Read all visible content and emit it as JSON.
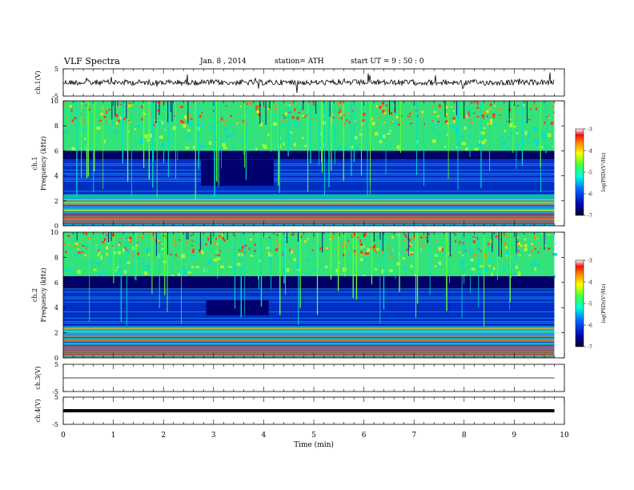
{
  "header": {
    "title": "VLF  Spectra",
    "date": "Jan.  8  , 2014",
    "station": "station= ATH",
    "start_ut": "start  UT  =   9  : 50 : 0"
  },
  "chart_data": {
    "type": "heatmap",
    "x_axis": {
      "label": "Time  (min)",
      "range": [
        0,
        10
      ],
      "ticks": [
        0,
        1,
        2,
        3,
        4,
        5,
        6,
        7,
        8,
        9,
        10
      ],
      "data_end": 9.8
    },
    "panels": [
      {
        "kind": "waveform",
        "ylabel": "ch.1(V)",
        "ylim": [
          -5,
          5
        ],
        "ytick_labels": [
          "5",
          "-5"
        ],
        "trace_color": "#000000",
        "baseline": 0
      },
      {
        "kind": "spectrogram",
        "ylabel_channel": "ch.1",
        "ylabel": "Frequency  (kHz)",
        "ylim": [
          0,
          10
        ],
        "yticks": [
          0,
          2,
          4,
          6,
          8,
          10
        ],
        "structure": {
          "green_upper_band_khz": [
            6,
            10
          ],
          "dark_band_khz": [
            5.3,
            6.0
          ],
          "blue_band_khz": [
            2.5,
            5.3
          ],
          "mixed_band_khz": [
            0,
            2.5
          ],
          "quiet_patch": {
            "t_min": [
              2.75,
              4.2
            ],
            "f_khz": [
              3.2,
              5.3
            ]
          },
          "spheric_density": 70
        },
        "colorbar": {
          "label": "log(PSD)(V²/Hz)",
          "range": [
            -7,
            -3
          ],
          "tick_labels": [
            "-3",
            "-4",
            "-5",
            "-6",
            "-7"
          ]
        }
      },
      {
        "kind": "spectrogram",
        "ylabel_channel": "ch.2",
        "ylabel": "Frequency  (kHz)",
        "ylim": [
          0,
          10
        ],
        "yticks": [
          0,
          2,
          4,
          6,
          8,
          10
        ],
        "structure": {
          "green_upper_band_khz": [
            6.5,
            10
          ],
          "dark_band_khz": [
            5.5,
            6.5
          ],
          "blue_band_khz": [
            2.5,
            5.5
          ],
          "mixed_band_khz": [
            0,
            2.5
          ],
          "quiet_patch": {
            "t_min": [
              2.85,
              4.1
            ],
            "f_khz": [
              3.4,
              4.6
            ]
          },
          "spheric_density": 50
        },
        "colorbar": {
          "label": "log(PSD)(V²/Hz)",
          "range": [
            -7,
            -3
          ],
          "tick_labels": [
            "-3",
            "-4",
            "-5",
            "-6",
            "-7"
          ]
        }
      },
      {
        "kind": "waveform",
        "ylabel": "ch.3(V)",
        "ylim": [
          -5,
          5
        ],
        "ytick_labels": [
          "5",
          "-5"
        ],
        "trace_color": "#000000",
        "baseline": 0
      },
      {
        "kind": "waveform",
        "ylabel": "ch.4(V)",
        "ylim": [
          -5,
          5
        ],
        "ytick_labels": [
          "5",
          "-5"
        ],
        "trace_color": "#000000",
        "baseline": 0
      }
    ],
    "colormap": [
      "#ffffff",
      "#e41a1c",
      "#ff7f00",
      "#ffff33",
      "#66ff33",
      "#00ffcc",
      "#0080ff",
      "#0000cc",
      "#00003a"
    ]
  }
}
